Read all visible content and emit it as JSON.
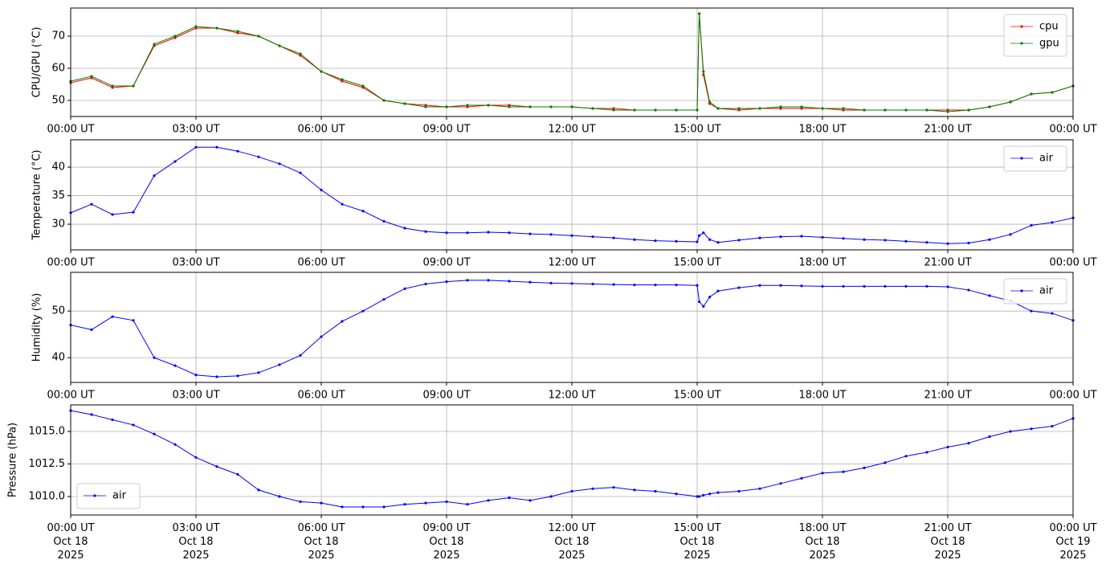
{
  "chart_data": [
    {
      "type": "line",
      "ylabel": "CPU/GPU (°C)",
      "legend": "upper right",
      "grid": true,
      "x": [
        0,
        0.5,
        1,
        1.5,
        2,
        2.5,
        3,
        3.5,
        4,
        4.5,
        5,
        5.5,
        6,
        6.5,
        7,
        7.5,
        8,
        8.5,
        9,
        9.5,
        10,
        10.5,
        11,
        11.5,
        12,
        12.5,
        13,
        13.5,
        14,
        14.5,
        15,
        15.05,
        15.15,
        15.3,
        15.5,
        16,
        16.5,
        17,
        17.5,
        18,
        18.5,
        19,
        19.5,
        20,
        20.5,
        21,
        21.5,
        22,
        22.5,
        23,
        23.5,
        24
      ],
      "series": [
        {
          "name": "cpu",
          "color": "#ff0000",
          "values": [
            55.5,
            57,
            54,
            54.5,
            67,
            69.5,
            72.5,
            72.5,
            71,
            70,
            67,
            64,
            59,
            56,
            54,
            50,
            49,
            48.5,
            48,
            48,
            48.5,
            48.5,
            48,
            48,
            48,
            47.5,
            47.5,
            47,
            47,
            47,
            47,
            77,
            58,
            49,
            47.5,
            47,
            47.5,
            47.5,
            47.5,
            47.5,
            47,
            47,
            47,
            47,
            47,
            47,
            47,
            48,
            49.5,
            52,
            52.5,
            54.5
          ]
        },
        {
          "name": "gpu",
          "color": "#008000",
          "values": [
            56,
            57.5,
            54.5,
            54.5,
            67.5,
            70,
            73,
            72.5,
            71.5,
            70,
            67,
            64.5,
            59,
            56.5,
            54.5,
            50,
            49,
            48,
            48,
            48.5,
            48.5,
            48,
            48,
            48,
            48,
            47.5,
            47,
            47,
            47,
            47,
            47,
            77,
            59,
            49.5,
            47.5,
            47.5,
            47.5,
            48,
            48,
            47.5,
            47.5,
            47,
            47,
            47,
            47,
            46.5,
            47,
            48,
            49.5,
            52,
            52.5,
            54.5
          ]
        }
      ],
      "xlim": [
        0,
        24
      ],
      "xticks": [
        {
          "value": 0,
          "label": "00:00 UT"
        },
        {
          "value": 3,
          "label": "03:00 UT"
        },
        {
          "value": 6,
          "label": "06:00 UT"
        },
        {
          "value": 9,
          "label": "09:00 UT"
        },
        {
          "value": 12,
          "label": "12:00 UT"
        },
        {
          "value": 15,
          "label": "15:00 UT"
        },
        {
          "value": 18,
          "label": "18:00 UT"
        },
        {
          "value": 21,
          "label": "21:00 UT"
        },
        {
          "value": 24,
          "label": "00:00 UT"
        }
      ],
      "ylim": [
        45,
        78.75
      ],
      "yticks": [
        50,
        60,
        70
      ]
    },
    {
      "type": "line",
      "ylabel": "Temperature (°C)",
      "legend": "upper right",
      "grid": true,
      "x": [
        0,
        0.5,
        1,
        1.5,
        2,
        2.5,
        3,
        3.5,
        4,
        4.5,
        5,
        5.5,
        6,
        6.5,
        7,
        7.5,
        8,
        8.5,
        9,
        9.5,
        10,
        10.5,
        11,
        11.5,
        12,
        12.5,
        13,
        13.5,
        14,
        14.5,
        15,
        15.05,
        15.15,
        15.3,
        15.5,
        16,
        16.5,
        17,
        17.5,
        18,
        18.5,
        19,
        19.5,
        20,
        20.5,
        21,
        21.5,
        22,
        22.5,
        23,
        23.5,
        24
      ],
      "series": [
        {
          "name": "air",
          "color": "#0000ff",
          "values": [
            32,
            33.5,
            31.7,
            32.1,
            38.5,
            41,
            43.5,
            43.5,
            42.8,
            41.8,
            40.6,
            39,
            36,
            33.5,
            32.3,
            30.5,
            29.3,
            28.7,
            28.5,
            28.5,
            28.6,
            28.5,
            28.3,
            28.2,
            28,
            27.8,
            27.6,
            27.3,
            27.1,
            27,
            26.9,
            28,
            28.5,
            27.3,
            26.8,
            27.2,
            27.6,
            27.8,
            27.9,
            27.7,
            27.5,
            27.3,
            27.2,
            27,
            26.8,
            26.6,
            26.7,
            27.3,
            28.2,
            29.8,
            30.3,
            31.1
          ]
        }
      ],
      "xlim": [
        0,
        24
      ],
      "xticks": [
        {
          "value": 0,
          "label": "00:00 UT"
        },
        {
          "value": 3,
          "label": "03:00 UT"
        },
        {
          "value": 6,
          "label": "06:00 UT"
        },
        {
          "value": 9,
          "label": "09:00 UT"
        },
        {
          "value": 12,
          "label": "12:00 UT"
        },
        {
          "value": 15,
          "label": "15:00 UT"
        },
        {
          "value": 18,
          "label": "18:00 UT"
        },
        {
          "value": 21,
          "label": "21:00 UT"
        },
        {
          "value": 24,
          "label": "00:00 UT"
        }
      ],
      "ylim": [
        25.5,
        44.8
      ],
      "yticks": [
        30,
        35,
        40
      ]
    },
    {
      "type": "line",
      "ylabel": "Humidity (%)",
      "legend": "upper right",
      "grid": true,
      "x": [
        0,
        0.5,
        1,
        1.5,
        2,
        2.5,
        3,
        3.5,
        4,
        4.5,
        5,
        5.5,
        6,
        6.5,
        7,
        7.5,
        8,
        8.5,
        9,
        9.5,
        10,
        10.5,
        11,
        11.5,
        12,
        12.5,
        13,
        13.5,
        14,
        14.5,
        15,
        15.05,
        15.15,
        15.3,
        15.5,
        16,
        16.5,
        17,
        17.5,
        18,
        18.5,
        19,
        19.5,
        20,
        20.5,
        21,
        21.5,
        22,
        22.5,
        23,
        23.5,
        24
      ],
      "series": [
        {
          "name": "air",
          "color": "#0000ff",
          "values": [
            47,
            46,
            48.8,
            48,
            40,
            38.3,
            36.3,
            35.9,
            36.1,
            36.8,
            38.5,
            40.5,
            44.5,
            47.8,
            50,
            52.5,
            54.8,
            55.8,
            56.3,
            56.6,
            56.6,
            56.4,
            56.2,
            56,
            55.9,
            55.8,
            55.7,
            55.6,
            55.6,
            55.6,
            55.5,
            52,
            51,
            53,
            54.3,
            55,
            55.5,
            55.5,
            55.4,
            55.3,
            55.3,
            55.3,
            55.3,
            55.3,
            55.3,
            55.2,
            54.5,
            53.3,
            52.2,
            50,
            49.5,
            48
          ]
        }
      ],
      "xlim": [
        0,
        24
      ],
      "xticks": [
        {
          "value": 0,
          "label": "00:00 UT"
        },
        {
          "value": 3,
          "label": "03:00 UT"
        },
        {
          "value": 6,
          "label": "06:00 UT"
        },
        {
          "value": 9,
          "label": "09:00 UT"
        },
        {
          "value": 12,
          "label": "12:00 UT"
        },
        {
          "value": 15,
          "label": "15:00 UT"
        },
        {
          "value": 18,
          "label": "18:00 UT"
        },
        {
          "value": 21,
          "label": "21:00 UT"
        },
        {
          "value": 24,
          "label": "00:00 UT"
        }
      ],
      "ylim": [
        34.7,
        58.3
      ],
      "yticks": [
        40,
        50
      ]
    },
    {
      "type": "line",
      "ylabel": "Pressure (hPa)",
      "legend": "lower left",
      "grid": true,
      "x": [
        0,
        0.5,
        1,
        1.5,
        2,
        2.5,
        3,
        3.5,
        4,
        4.5,
        5,
        5.5,
        6,
        6.5,
        7,
        7.5,
        8,
        8.5,
        9,
        9.5,
        10,
        10.5,
        11,
        11.5,
        12,
        12.5,
        13,
        13.5,
        14,
        14.5,
        15,
        15.05,
        15.15,
        15.3,
        15.5,
        16,
        16.5,
        17,
        17.5,
        18,
        18.5,
        19,
        19.5,
        20,
        20.5,
        21,
        21.5,
        22,
        22.5,
        23,
        23.5,
        24
      ],
      "series": [
        {
          "name": "air",
          "color": "#0000ff",
          "values": [
            1016.6,
            1016.3,
            1015.9,
            1015.5,
            1014.8,
            1014,
            1013,
            1012.3,
            1011.7,
            1010.5,
            1010,
            1009.6,
            1009.5,
            1009.2,
            1009.2,
            1009.2,
            1009.4,
            1009.5,
            1009.6,
            1009.4,
            1009.7,
            1009.9,
            1009.7,
            1010,
            1010.4,
            1010.6,
            1010.7,
            1010.5,
            1010.4,
            1010.2,
            1010,
            1010,
            1010.1,
            1010.2,
            1010.3,
            1010.4,
            1010.6,
            1011,
            1011.4,
            1011.8,
            1011.9,
            1012.2,
            1012.6,
            1013.1,
            1013.4,
            1013.8,
            1014.1,
            1014.6,
            1015,
            1015.2,
            1015.4,
            1016
          ]
        }
      ],
      "xlim": [
        0,
        24
      ],
      "xticks": [
        {
          "value": 0,
          "label": "00:00 UT\nOct 18\n2025"
        },
        {
          "value": 3,
          "label": "03:00 UT\nOct 18\n2025"
        },
        {
          "value": 6,
          "label": "06:00 UT\nOct 18\n2025"
        },
        {
          "value": 9,
          "label": "09:00 UT\nOct 18\n2025"
        },
        {
          "value": 12,
          "label": "12:00 UT\nOct 18\n2025"
        },
        {
          "value": 15,
          "label": "15:00 UT\nOct 18\n2025"
        },
        {
          "value": 18,
          "label": "18:00 UT\nOct 18\n2025"
        },
        {
          "value": 21,
          "label": "21:00 UT\nOct 18\n2025"
        },
        {
          "value": 24,
          "label": "00:00 UT\nOct 19\n2025"
        }
      ],
      "ylim": [
        1008.58,
        1017.04
      ],
      "yticks": [
        {
          "value": 1010,
          "label": "1010.0"
        },
        1012.5,
        {
          "value": 1015,
          "label": "1015.0"
        }
      ]
    }
  ]
}
